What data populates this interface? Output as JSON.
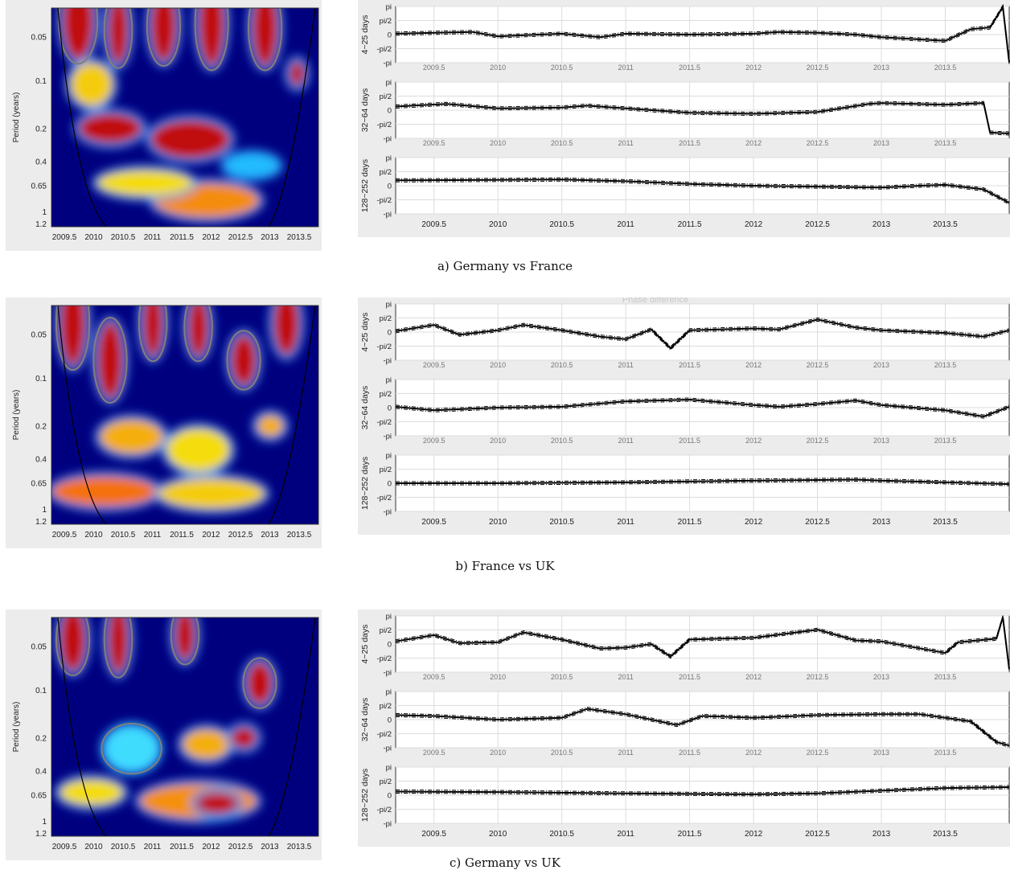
{
  "colors": {
    "power_low": "#00007f",
    "power_high": "#c80000",
    "contour": "#7f7f7f",
    "coi": "#000000",
    "panel_bg": "#ececec",
    "line": "#000000"
  },
  "wavelet_axes": {
    "ylabel": "Period (years)",
    "yticks": [
      "0.05",
      "0.1",
      "0.2",
      "0.4",
      "0.65",
      "1",
      "1.2"
    ],
    "xticks": [
      "2009.5",
      "2010",
      "2010.5",
      "2011",
      "2011.5",
      "2012",
      "2012.5",
      "2013",
      "2013.5"
    ]
  },
  "phase_axes": {
    "yticks": [
      "pi",
      "pi/2",
      "0",
      "-pi/2",
      "-pi"
    ],
    "xticks": [
      "2009.5",
      "2010",
      "2010.5",
      "2011",
      "2011.5",
      "2012",
      "2012.5",
      "2013",
      "2013.5"
    ],
    "band_labels": [
      "4~25 days",
      "32~64 days",
      "128~252 days"
    ]
  },
  "faint_header": "Phase difference",
  "sections": [
    {
      "caption": "a) Germany vs France"
    },
    {
      "caption": "b) France vs UK"
    },
    {
      "caption": "c) Germany vs UK"
    }
  ],
  "chart_data": [
    {
      "type": "line",
      "title": "a) Germany vs France",
      "xlim": [
        2009.2,
        2014.0
      ],
      "ylim": [
        -3.1416,
        3.1416
      ],
      "grid": true,
      "bands": [
        {
          "label": "4~25 days",
          "x": [
            2009.2,
            2009.8,
            2010.0,
            2010.5,
            2010.8,
            2011.0,
            2011.5,
            2012.0,
            2012.2,
            2012.5,
            2012.8,
            2013.0,
            2013.5,
            2013.7,
            2013.85,
            2013.95,
            2014.0
          ],
          "y": [
            0.1,
            0.3,
            -0.2,
            0.1,
            -0.3,
            0.1,
            0,
            0.1,
            0.3,
            0.2,
            0,
            -0.3,
            -0.7,
            0.6,
            0.8,
            3.1,
            -3.1
          ]
        },
        {
          "label": "32~64 days",
          "x": [
            2009.2,
            2009.6,
            2010.0,
            2010.5,
            2010.7,
            2011.0,
            2011.5,
            2012.0,
            2012.5,
            2012.9,
            2013.0,
            2013.5,
            2013.8,
            2013.85,
            2014.0
          ],
          "y": [
            0.4,
            0.7,
            0.2,
            0.3,
            0.5,
            0.2,
            -0.3,
            -0.4,
            -0.2,
            0.7,
            0.8,
            0.6,
            0.8,
            -2.5,
            -2.6
          ]
        },
        {
          "label": "128~252 days",
          "x": [
            2009.2,
            2010.0,
            2010.5,
            2011.0,
            2011.5,
            2012.0,
            2012.5,
            2013.0,
            2013.3,
            2013.5,
            2013.8,
            2014.0
          ],
          "y": [
            0.6,
            0.65,
            0.7,
            0.5,
            0.2,
            0,
            -0.1,
            -0.2,
            0,
            0.1,
            -0.4,
            -1.9
          ]
        }
      ]
    },
    {
      "type": "line",
      "title": "b) France vs UK",
      "xlim": [
        2009.2,
        2014.0
      ],
      "ylim": [
        -3.1416,
        3.1416
      ],
      "grid": true,
      "bands": [
        {
          "label": "4~25 days",
          "x": [
            2009.2,
            2009.5,
            2009.7,
            2010.0,
            2010.2,
            2010.5,
            2010.8,
            2011.0,
            2011.2,
            2011.35,
            2011.5,
            2012.0,
            2012.2,
            2012.5,
            2012.8,
            2013.0,
            2013.5,
            2013.8,
            2014.0
          ],
          "y": [
            0.1,
            0.8,
            -0.3,
            0.2,
            0.8,
            0.2,
            -0.5,
            -0.8,
            0.3,
            -1.8,
            0.2,
            0.4,
            0.3,
            1.4,
            0.5,
            0.2,
            -0.1,
            -0.5,
            0.2
          ]
        },
        {
          "label": "32~64 days",
          "x": [
            2009.2,
            2009.5,
            2010.0,
            2010.5,
            2011.0,
            2011.5,
            2012.0,
            2012.2,
            2012.5,
            2012.8,
            2013.0,
            2013.5,
            2013.8,
            2014.0
          ],
          "y": [
            0.1,
            -0.3,
            0,
            0.1,
            0.7,
            0.9,
            0.3,
            0.1,
            0.4,
            0.8,
            0.3,
            -0.3,
            -1.0,
            0.1
          ]
        },
        {
          "label": "128~252 days",
          "x": [
            2009.2,
            2010.0,
            2011.0,
            2012.0,
            2012.8,
            2013.0,
            2013.5,
            2014.0
          ],
          "y": [
            0,
            0,
            0.1,
            0.3,
            0.4,
            0.3,
            0.1,
            -0.1
          ]
        }
      ]
    },
    {
      "type": "line",
      "title": "c) Germany vs UK",
      "xlim": [
        2009.2,
        2014.0
      ],
      "ylim": [
        -3.1416,
        3.1416
      ],
      "grid": true,
      "bands": [
        {
          "label": "4~25 days",
          "x": [
            2009.2,
            2009.5,
            2009.7,
            2010.0,
            2010.2,
            2010.5,
            2010.8,
            2011.0,
            2011.2,
            2011.35,
            2011.5,
            2012.0,
            2012.5,
            2012.8,
            2013.0,
            2013.5,
            2013.6,
            2013.9,
            2013.95,
            2014.0
          ],
          "y": [
            0.3,
            1.0,
            0.1,
            0.2,
            1.3,
            0.5,
            -0.5,
            -0.4,
            0,
            -1.4,
            0.5,
            0.7,
            1.6,
            0.4,
            0.3,
            -1.0,
            0.2,
            0.6,
            3.0,
            -2.8
          ]
        },
        {
          "label": "32~64 days",
          "x": [
            2009.2,
            2009.5,
            2010.0,
            2010.5,
            2010.7,
            2011.0,
            2011.4,
            2011.6,
            2012.0,
            2012.5,
            2013.0,
            2013.3,
            2013.7,
            2013.9,
            2014.0
          ],
          "y": [
            0.5,
            0.4,
            0,
            0.2,
            1.2,
            0.6,
            -0.6,
            0.4,
            0.2,
            0.5,
            0.6,
            0.6,
            -0.2,
            -2.5,
            -2.9
          ]
        },
        {
          "label": "128~252 days",
          "x": [
            2009.2,
            2010.0,
            2011.0,
            2012.0,
            2012.5,
            2013.0,
            2013.5,
            2014.0
          ],
          "y": [
            0.4,
            0.35,
            0.2,
            0.1,
            0.2,
            0.5,
            0.8,
            0.9
          ]
        }
      ]
    }
  ]
}
